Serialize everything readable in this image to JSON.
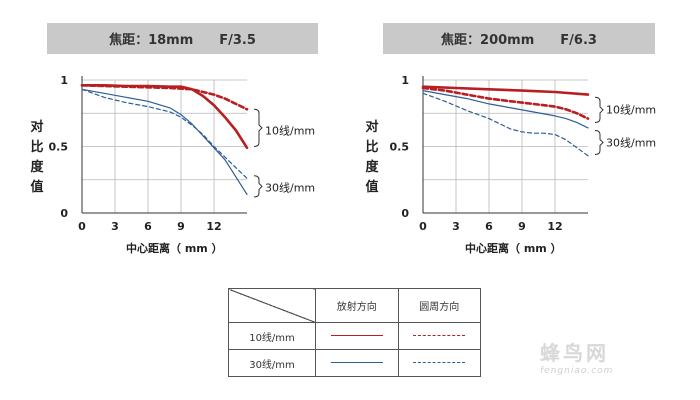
{
  "chart_data": [
    {
      "type": "line",
      "title": "焦距：18mm　　F/3.5",
      "xlabel": "中心距离（ mm ）",
      "ylabel": "对比度值",
      "x_ticks": [
        "0",
        "3",
        "6",
        "9",
        "12"
      ],
      "y_ticks": [
        "0",
        "0.5",
        "1"
      ],
      "xlim": [
        0,
        15
      ],
      "ylim": [
        0,
        1
      ],
      "annotations": [
        "10线/mm",
        "30线/mm"
      ],
      "series": [
        {
          "name": "10线/mm 放射方向",
          "color": "#b81e22",
          "style": "solid",
          "x": [
            0,
            2,
            4,
            6,
            8,
            9,
            10,
            11,
            12,
            13,
            14,
            15
          ],
          "y": [
            0.96,
            0.96,
            0.955,
            0.955,
            0.95,
            0.95,
            0.93,
            0.88,
            0.81,
            0.72,
            0.62,
            0.49
          ]
        },
        {
          "name": "10线/mm 圆周方向",
          "color": "#b81e22",
          "style": "dashed",
          "x": [
            0,
            2,
            4,
            6,
            8,
            10,
            11,
            12,
            13,
            14,
            15
          ],
          "y": [
            0.96,
            0.955,
            0.95,
            0.945,
            0.94,
            0.93,
            0.91,
            0.89,
            0.86,
            0.82,
            0.78
          ]
        },
        {
          "name": "30线/mm 放射方向",
          "color": "#2d5e96",
          "style": "solid",
          "x": [
            0,
            2,
            4,
            6,
            8,
            9,
            10,
            11,
            12,
            13,
            14,
            15
          ],
          "y": [
            0.93,
            0.9,
            0.87,
            0.84,
            0.79,
            0.74,
            0.67,
            0.58,
            0.49,
            0.4,
            0.27,
            0.14
          ]
        },
        {
          "name": "30线/mm 圆周方向",
          "color": "#2d5e96",
          "style": "dashed",
          "x": [
            0,
            2,
            4,
            6,
            8,
            9,
            10,
            11,
            12,
            13,
            14,
            15
          ],
          "y": [
            0.93,
            0.87,
            0.83,
            0.8,
            0.76,
            0.72,
            0.66,
            0.59,
            0.5,
            0.42,
            0.34,
            0.26
          ]
        }
      ]
    },
    {
      "type": "line",
      "title": "焦距：200mm　　F/6.3",
      "xlabel": "中心距离（ mm ）",
      "ylabel": "对比度值",
      "x_ticks": [
        "0",
        "3",
        "6",
        "9",
        "12"
      ],
      "y_ticks": [
        "0",
        "0.5",
        "1"
      ],
      "xlim": [
        0,
        15
      ],
      "ylim": [
        0,
        1
      ],
      "annotations": [
        "10线/mm",
        "30线/mm"
      ],
      "series": [
        {
          "name": "10线/mm 放射方向",
          "color": "#b81e22",
          "style": "solid",
          "x": [
            0,
            3,
            6,
            9,
            12,
            15
          ],
          "y": [
            0.95,
            0.94,
            0.93,
            0.92,
            0.91,
            0.89
          ]
        },
        {
          "name": "10线/mm 圆周方向",
          "color": "#b81e22",
          "style": "dashed",
          "x": [
            0,
            2,
            4,
            6,
            8,
            10,
            12,
            13,
            14,
            15
          ],
          "y": [
            0.94,
            0.92,
            0.89,
            0.86,
            0.84,
            0.82,
            0.8,
            0.78,
            0.75,
            0.71
          ]
        },
        {
          "name": "30线/mm 放射方向",
          "color": "#2d5e96",
          "style": "solid",
          "x": [
            0,
            2,
            4,
            6,
            8,
            10,
            12,
            13,
            14,
            15
          ],
          "y": [
            0.92,
            0.89,
            0.86,
            0.82,
            0.79,
            0.76,
            0.73,
            0.71,
            0.68,
            0.64
          ]
        },
        {
          "name": "30线/mm 圆周方向",
          "color": "#2d5e96",
          "style": "dashed",
          "x": [
            0,
            2,
            4,
            6,
            7,
            8,
            9,
            10,
            11,
            12,
            13,
            14,
            15
          ],
          "y": [
            0.9,
            0.84,
            0.77,
            0.71,
            0.67,
            0.63,
            0.61,
            0.6,
            0.6,
            0.59,
            0.55,
            0.49,
            0.43
          ]
        }
      ]
    }
  ],
  "legend": {
    "col_radial": "放射方向",
    "col_tangential": "圆周方向",
    "row_10": "10线/mm",
    "row_30": "30线/mm",
    "color_10": "#b81e22",
    "color_30": "#2d5e96"
  },
  "watermark": {
    "text": "蜂鸟网",
    "url": "fengniao.com"
  }
}
